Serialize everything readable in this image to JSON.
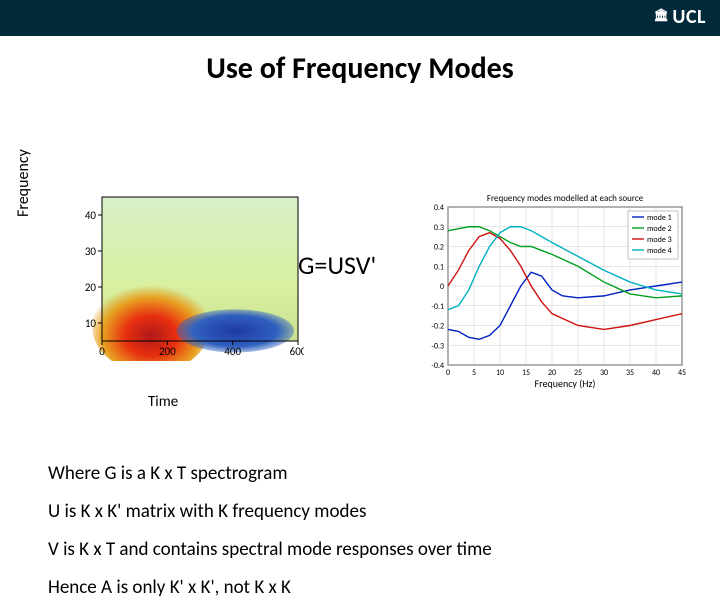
{
  "header": {
    "logo_text": "UCL",
    "header_bg": "#002a3a",
    "logo_color": "#ffffff"
  },
  "title": "Use of Frequency Modes",
  "equation": "G=USV'",
  "spectrogram": {
    "type": "heatmap",
    "ylabel": "Frequency",
    "xlabel": "Time",
    "yticks": [
      10,
      20,
      30,
      40
    ],
    "xticks": [
      0,
      200,
      400,
      600
    ],
    "xlim": [
      0,
      600
    ],
    "ylim": [
      5,
      45
    ],
    "label_fontsize": 16,
    "tick_fontsize": 11,
    "plot_bg_top": "#d8f0c8",
    "gradient_bands": [
      {
        "color": "#a8e09c"
      },
      {
        "color": "#e8a020"
      },
      {
        "color": "#b01818"
      },
      {
        "color": "#1e3aa0"
      }
    ],
    "axis_color": "#000000"
  },
  "lineplot": {
    "type": "line",
    "title": "Frequency modes modelled at each source",
    "title_fontsize": 9,
    "xlabel": "Frequency (Hz)",
    "xlabel_fontsize": 10,
    "xlim": [
      0,
      45
    ],
    "ylim": [
      -0.4,
      0.4
    ],
    "xticks": [
      0,
      5,
      10,
      15,
      20,
      25,
      30,
      35,
      40,
      45
    ],
    "yticks": [
      -0.4,
      -0.3,
      -0.2,
      -0.1,
      0,
      0.1,
      0.2,
      0.3,
      0.4
    ],
    "tick_fontsize": 8,
    "grid_color": "#cccccc",
    "background_color": "#ffffff",
    "axis_color": "#000000",
    "line_width": 1.4,
    "legend": {
      "position": "top-right",
      "items": [
        {
          "label": "mode 1",
          "color": "#0020c0"
        },
        {
          "label": "mode 2",
          "color": "#00a020"
        },
        {
          "label": "mode 3",
          "color": "#d01010"
        },
        {
          "label": "mode 4",
          "color": "#00b0c0"
        }
      ],
      "fontsize": 8,
      "border_color": "#999999"
    },
    "series": [
      {
        "name": "mode1",
        "color": "#0020c0",
        "x": [
          0,
          2,
          4,
          6,
          8,
          10,
          12,
          14,
          16,
          18,
          20,
          22,
          25,
          30,
          35,
          40,
          45
        ],
        "y": [
          -0.22,
          -0.23,
          -0.26,
          -0.27,
          -0.25,
          -0.2,
          -0.1,
          0.0,
          0.07,
          0.05,
          -0.02,
          -0.05,
          -0.06,
          -0.05,
          -0.02,
          0.0,
          0.02
        ]
      },
      {
        "name": "mode2",
        "color": "#00a020",
        "x": [
          0,
          2,
          4,
          6,
          8,
          10,
          12,
          14,
          16,
          18,
          20,
          25,
          30,
          35,
          40,
          45
        ],
        "y": [
          0.28,
          0.29,
          0.3,
          0.3,
          0.28,
          0.25,
          0.22,
          0.2,
          0.2,
          0.18,
          0.16,
          0.1,
          0.02,
          -0.04,
          -0.06,
          -0.05
        ]
      },
      {
        "name": "mode3",
        "color": "#d01010",
        "x": [
          0,
          2,
          4,
          6,
          8,
          10,
          12,
          14,
          16,
          18,
          20,
          25,
          30,
          35,
          40,
          45
        ],
        "y": [
          0.0,
          0.08,
          0.18,
          0.25,
          0.27,
          0.24,
          0.18,
          0.1,
          0.0,
          -0.08,
          -0.14,
          -0.2,
          -0.22,
          -0.2,
          -0.17,
          -0.14
        ]
      },
      {
        "name": "mode4",
        "color": "#00b0c0",
        "x": [
          0,
          2,
          4,
          6,
          8,
          10,
          12,
          14,
          16,
          18,
          20,
          25,
          30,
          35,
          40,
          45
        ],
        "y": [
          -0.12,
          -0.1,
          -0.02,
          0.1,
          0.2,
          0.27,
          0.3,
          0.3,
          0.28,
          0.25,
          0.22,
          0.15,
          0.08,
          0.02,
          -0.02,
          -0.04
        ]
      }
    ]
  },
  "text": {
    "line1": "Where G is a K x T spectrogram",
    "line2": "U is K x K' matrix with K frequency modes",
    "line3": "V is K x T and contains spectral mode responses over time",
    "line4": "Hence A is only K' x K', not K x K"
  }
}
